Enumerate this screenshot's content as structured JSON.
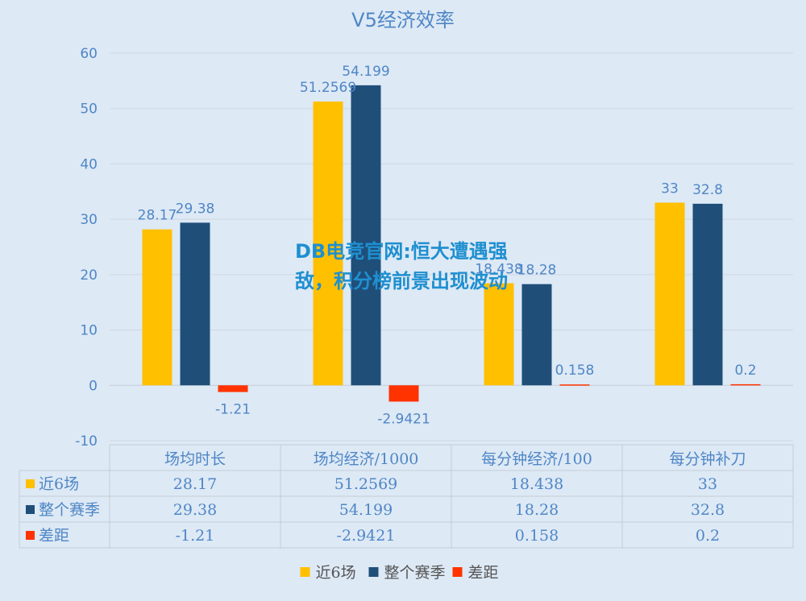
{
  "chart_data": {
    "type": "bar",
    "title": "V5经济效率",
    "categories": [
      "场均时长",
      "场均经济/1000",
      "每分钟经济/100",
      "每分钟补刀"
    ],
    "series": [
      {
        "name": "近6场",
        "values": [
          28.17,
          51.2569,
          18.438,
          33
        ],
        "labels": [
          "28.17",
          "51.2569",
          "18.438",
          "33"
        ],
        "color": "#ffc000"
      },
      {
        "name": "整个赛季",
        "values": [
          29.38,
          54.199,
          18.28,
          32.8
        ],
        "labels": [
          "29.38",
          "54.199",
          "18.28",
          "32.8"
        ],
        "color": "#1f4e79"
      },
      {
        "name": "差距",
        "values": [
          -1.21,
          -2.9421,
          0.158,
          0.2
        ],
        "labels": [
          "-1.21",
          "-2.9421",
          "0.158",
          "0.2"
        ],
        "color": "#ff3300"
      }
    ],
    "ylim": [
      -10,
      60
    ],
    "yticks": [
      "-10",
      "0",
      "10",
      "20",
      "30",
      "40",
      "50",
      "60"
    ],
    "grid": true,
    "legend": "bottom",
    "data_table": true
  },
  "overlay": {
    "text": "DB电竞官网:恒大遭遇强敌，积分榜前景出现波动"
  }
}
